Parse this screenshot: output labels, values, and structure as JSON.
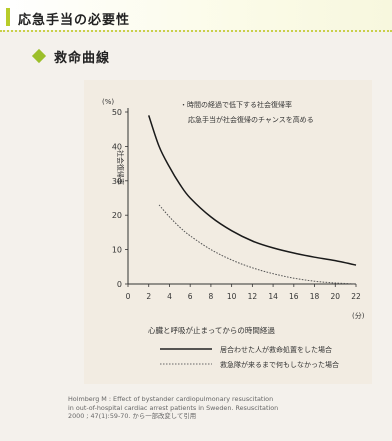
{
  "header": {
    "title": "応急手当の必要性"
  },
  "section": {
    "title": "救命曲線"
  },
  "chart_data": {
    "type": "line",
    "ylabel": "社会復帰率",
    "yunit": "(%)",
    "xunit": "(分)",
    "xlabel": "心臓と呼吸が止まってからの時間経過",
    "ylim": [
      0,
      50
    ],
    "xlim": [
      0,
      22
    ],
    "yticks": [
      "0",
      "10",
      "20",
      "30",
      "40",
      "50"
    ],
    "xticks": [
      "0",
      "2",
      "4",
      "6",
      "8",
      "10",
      "12",
      "14",
      "16",
      "18",
      "20",
      "22"
    ],
    "annotations": [
      "・時間の経過で低下する社会復帰率",
      "応急手当が社会復帰のチャンスを高める"
    ],
    "series": [
      {
        "name": "居合わせた人が救命処置をした場合",
        "style": "solid",
        "x": [
          2,
          3,
          4,
          5,
          6,
          8,
          10,
          12,
          14,
          16,
          18,
          20,
          22
        ],
        "y": [
          49,
          40,
          34,
          29,
          25,
          19.5,
          15.5,
          12.5,
          10.5,
          9,
          7.8,
          6.8,
          5.5
        ]
      },
      {
        "name": "救急隊が来るまで何もしなかった場合",
        "style": "dotted",
        "x": [
          3,
          4,
          5,
          6,
          8,
          10,
          12,
          14,
          16,
          18,
          20,
          22
        ],
        "y": [
          23,
          19.5,
          16.5,
          14,
          10,
          7,
          4.7,
          3,
          1.7,
          0.8,
          0.3,
          0
        ]
      }
    ]
  },
  "legend": {
    "solid": "居合わせた人が救命処置をした場合",
    "dotted": "救急隊が来るまで何もしなかった場合"
  },
  "citation": {
    "line1": "Holmberg M : Effect of bystander cardiopulmonary resuscitation",
    "line2": "in out-of-hospital cardiac arrest patients in Sweden. Resuscitation",
    "line3": "2000 ; 47(1):59-70. から一部改変して引用"
  }
}
